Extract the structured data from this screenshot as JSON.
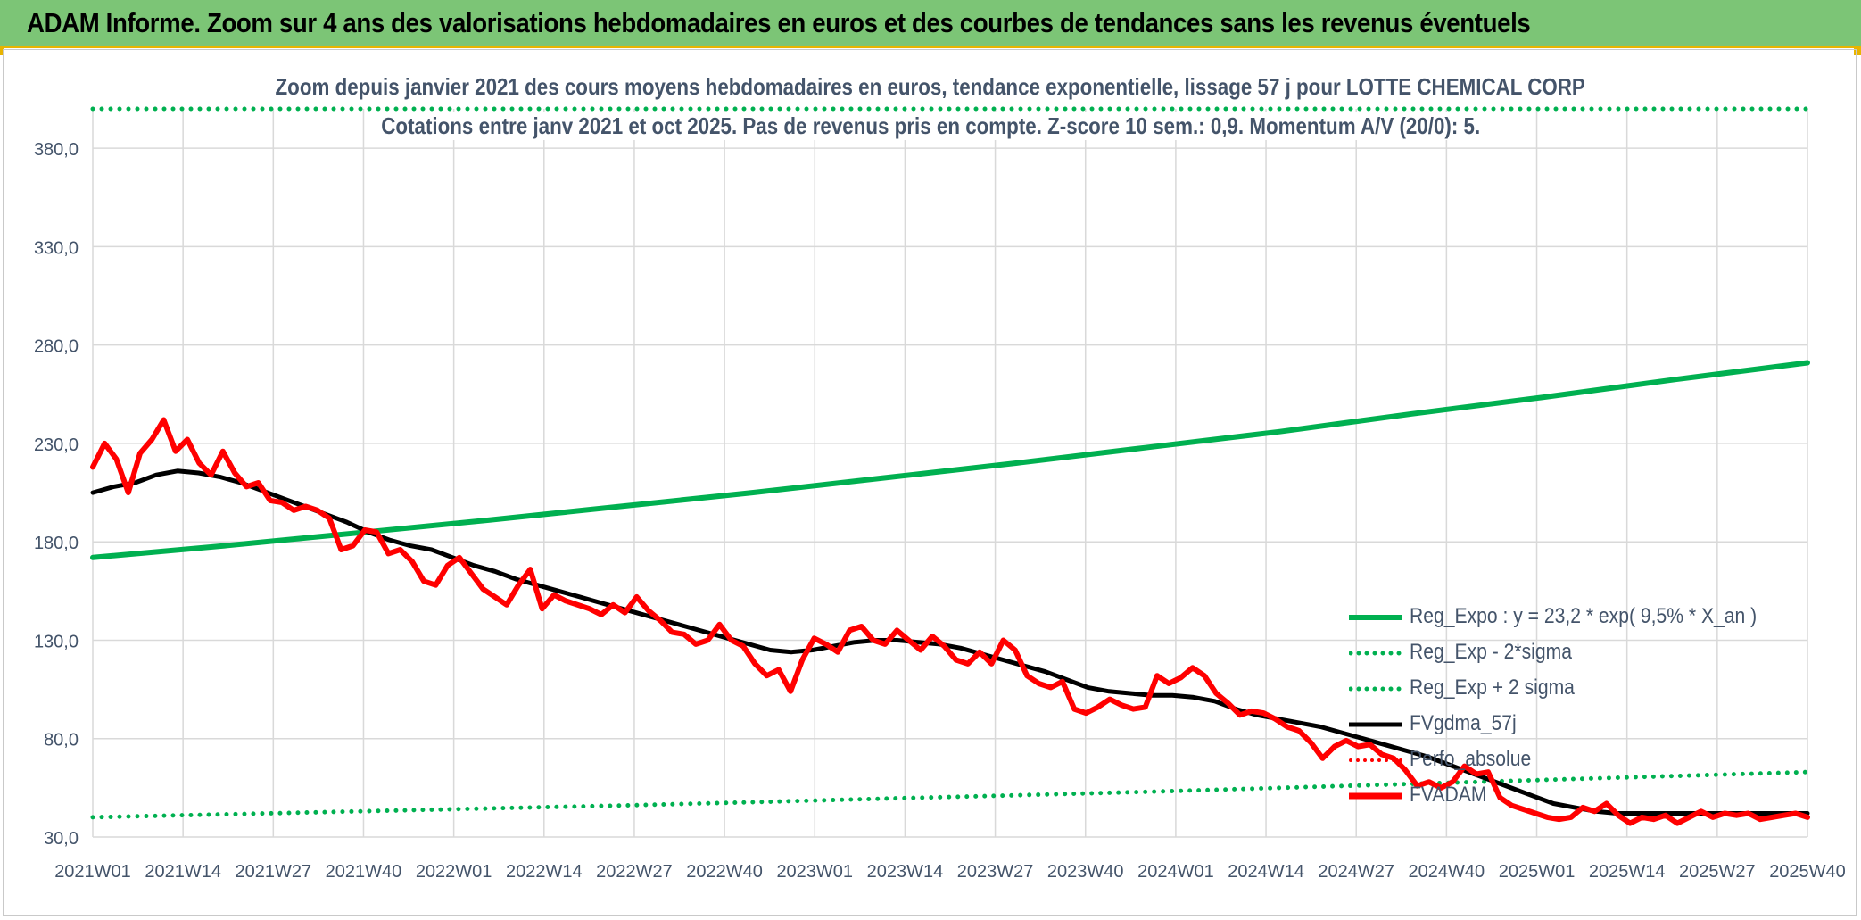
{
  "banner": {
    "title": "ADAM Informe. Zoom sur 4 ans des valorisations hebdomadaires en euros et des courbes de tendances sans les revenus éventuels"
  },
  "colors": {
    "banner_bg": "#7cc576",
    "accent": "#e8b400",
    "reg_expo": "#00b050",
    "fvgdma": "#000000",
    "fvadam": "#ff0000",
    "text": "#44546a",
    "grid": "#d9d9d9"
  },
  "chart_data": {
    "type": "line",
    "title": "Zoom depuis janvier 2021 des cours moyens hebdomadaires en euros, tendance exponentielle, lissage 57 j pour LOTTE CHEMICAL CORP",
    "subtitle": "Cotations entre janv 2021 et oct 2025. Pas de revenus pris en compte. Z-score 10 sem.: 0,9. Momentum A/V (20/0): 5.",
    "xlabel": "",
    "ylabel": "",
    "ylim": [
      30,
      400
    ],
    "yticks": [
      "30,0",
      "80,0",
      "130,0",
      "180,0",
      "230,0",
      "280,0",
      "330,0",
      "380,0"
    ],
    "x_tick_labels": [
      "2021W01",
      "2021W14",
      "2021W27",
      "2021W40",
      "2022W01",
      "2022W14",
      "2022W27",
      "2022W40",
      "2023W01",
      "2023W14",
      "2023W27",
      "2023W40",
      "2024W01",
      "2024W14",
      "2024W27",
      "2024W40",
      "2025W01",
      "2025W14",
      "2025W27",
      "2025W40"
    ],
    "weeks_per_tick": 13,
    "grid": true,
    "legend_position": "bottom-right",
    "series": [
      {
        "name": "Reg_Expo : y = 23,2 * exp( 9,5% *  X_an )",
        "style": "solid-thick",
        "color": "#00b050",
        "values": [
          172.0,
          178.0,
          184.5,
          191.0,
          198.0,
          205.0,
          212.5,
          220.0,
          228.0,
          236.0,
          245.0,
          253.5,
          262.5,
          271.0
        ]
      },
      {
        "name": "Reg_Exp - 2*sigma",
        "style": "dotted",
        "color": "#00b050",
        "values": [
          40.0,
          41.5,
          43.0,
          44.5,
          46.0,
          47.7,
          49.5,
          51.2,
          53.0,
          55.0,
          57.0,
          59.0,
          61.0,
          63.0
        ]
      },
      {
        "name": "Reg_Exp + 2 sigma",
        "style": "dotted",
        "color": "#00b050",
        "values": [
          400.0,
          400.0,
          400.0,
          400.0,
          400.0,
          400.0,
          400.0,
          400.0,
          400.0,
          400.0,
          400.0,
          400.0,
          400.0,
          400.0
        ]
      },
      {
        "name": "FVgdma_57j",
        "style": "solid",
        "color": "#000000",
        "values": [
          205,
          208,
          210,
          214,
          216,
          215,
          213,
          210,
          206,
          202,
          198,
          194,
          190,
          185,
          181,
          178,
          176,
          172,
          168,
          165,
          161,
          158,
          155,
          152,
          149,
          146,
          143,
          140,
          137,
          134,
          131,
          128,
          125,
          124,
          125,
          127,
          129,
          130,
          130,
          129,
          128,
          126,
          123,
          120,
          117,
          114,
          110,
          106,
          104,
          103,
          102,
          102,
          101,
          99,
          95,
          92,
          90,
          88,
          86,
          83,
          80,
          77,
          74,
          71,
          67,
          63,
          59,
          55,
          51,
          47,
          45,
          43,
          42,
          42,
          42,
          42,
          42,
          42,
          42,
          42,
          42,
          42
        ]
      },
      {
        "name": "Perfo_absolue",
        "style": "dotted",
        "color": "#ff0000",
        "values": []
      },
      {
        "name": "FVADAM",
        "style": "solid-thick",
        "color": "#ff0000",
        "values": [
          218,
          230,
          222,
          205,
          225,
          232,
          242,
          226,
          232,
          220,
          214,
          226,
          215,
          208,
          210,
          201,
          200,
          196,
          198,
          196,
          192,
          176,
          178,
          186,
          185,
          174,
          176,
          170,
          160,
          158,
          168,
          172,
          164,
          156,
          152,
          148,
          158,
          166,
          146,
          153,
          150,
          148,
          146,
          143,
          148,
          144,
          152,
          145,
          140,
          134,
          133,
          128,
          130,
          138,
          130,
          127,
          118,
          112,
          115,
          104,
          120,
          131,
          128,
          124,
          135,
          137,
          130,
          128,
          135,
          130,
          125,
          132,
          127,
          120,
          118,
          124,
          118,
          130,
          125,
          112,
          108,
          106,
          109,
          95,
          93,
          96,
          100,
          97,
          95,
          96,
          112,
          108,
          111,
          116,
          112,
          103,
          98,
          92,
          94,
          93,
          90,
          86,
          84,
          78,
          70,
          76,
          79,
          76,
          77,
          72,
          70,
          64,
          56,
          58,
          55,
          58,
          66,
          62,
          63,
          50,
          46,
          44,
          42,
          40,
          39,
          40,
          45,
          43,
          47,
          41,
          37,
          40,
          39,
          41,
          37,
          40,
          43,
          40,
          42,
          41,
          42,
          39,
          40,
          41,
          42,
          40
        ]
      }
    ]
  }
}
